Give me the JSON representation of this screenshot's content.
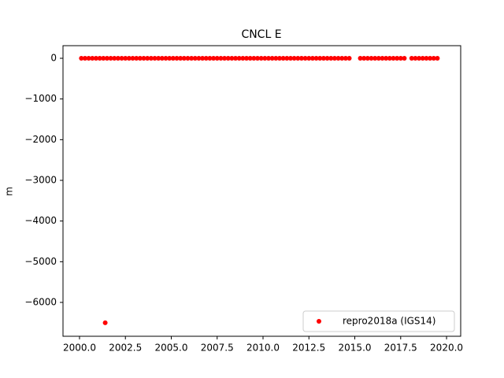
{
  "chart_data": {
    "type": "scatter",
    "title": "CNCL E",
    "y_label": "m",
    "x": [
      2000.1,
      2000.3,
      2000.5,
      2000.7,
      2000.9,
      2001.1,
      2001.3,
      2001.4,
      2001.5,
      2001.7,
      2001.9,
      2002.1,
      2002.3,
      2002.5,
      2002.7,
      2002.9,
      2003.1,
      2003.3,
      2003.5,
      2003.7,
      2003.9,
      2004.1,
      2004.3,
      2004.5,
      2004.7,
      2004.9,
      2005.1,
      2005.3,
      2005.5,
      2005.7,
      2005.9,
      2006.1,
      2006.3,
      2006.5,
      2006.7,
      2006.9,
      2007.1,
      2007.3,
      2007.5,
      2007.7,
      2007.9,
      2008.1,
      2008.3,
      2008.5,
      2008.7,
      2008.9,
      2009.1,
      2009.3,
      2009.5,
      2009.7,
      2009.9,
      2010.1,
      2010.3,
      2010.5,
      2010.7,
      2010.9,
      2011.1,
      2011.3,
      2011.5,
      2011.7,
      2011.9,
      2012.1,
      2012.3,
      2012.5,
      2012.7,
      2012.9,
      2013.1,
      2013.3,
      2013.5,
      2013.7,
      2013.9,
      2014.1,
      2014.3,
      2014.5,
      2014.7,
      2015.3,
      2015.5,
      2015.7,
      2015.9,
      2016.1,
      2016.3,
      2016.5,
      2016.7,
      2016.9,
      2017.1,
      2017.3,
      2017.5,
      2017.7,
      2018.1,
      2018.3,
      2018.5,
      2018.7,
      2018.9,
      2019.1,
      2019.3,
      2019.5
    ],
    "series": [
      {
        "name": "repro2018a (IGS14)",
        "color": "#ff0000",
        "values": [
          0,
          0,
          0,
          0,
          0,
          0,
          0,
          -6500,
          0,
          0,
          0,
          0,
          0,
          0,
          0,
          0,
          0,
          0,
          0,
          0,
          0,
          0,
          0,
          0,
          0,
          0,
          0,
          0,
          0,
          0,
          0,
          0,
          0,
          0,
          0,
          0,
          0,
          0,
          0,
          0,
          0,
          0,
          0,
          0,
          0,
          0,
          0,
          0,
          0,
          0,
          0,
          0,
          0,
          0,
          0,
          0,
          0,
          0,
          0,
          0,
          0,
          0,
          0,
          0,
          0,
          0,
          0,
          0,
          0,
          0,
          0,
          0,
          0,
          0,
          0,
          0,
          0,
          0,
          0,
          0,
          0,
          0,
          0,
          0,
          0,
          0,
          0,
          0,
          0,
          0,
          0,
          0,
          0,
          0,
          0,
          0
        ]
      }
    ],
    "xlim": [
      1999.1,
      2020.77
    ],
    "ylim": [
      -6832,
      310
    ],
    "xticks": [
      {
        "value": 2000,
        "label": "2000.0"
      },
      {
        "value": 2002.5,
        "label": "2002.5"
      },
      {
        "value": 2005,
        "label": "2005.0"
      },
      {
        "value": 2007.5,
        "label": "2007.5"
      },
      {
        "value": 2010,
        "label": "2010.0"
      },
      {
        "value": 2012.5,
        "label": "2012.5"
      },
      {
        "value": 2015,
        "label": "2015.0"
      },
      {
        "value": 2017.5,
        "label": "2017.5"
      },
      {
        "value": 2020,
        "label": "2020.0"
      }
    ],
    "yticks": [
      0,
      {
        "value": -1000,
        "label": "−1000"
      },
      {
        "value": -2000,
        "label": "−2000"
      },
      {
        "value": -3000,
        "label": "−3000"
      },
      {
        "value": -4000,
        "label": "−4000"
      },
      {
        "value": -5000,
        "label": "−5000"
      },
      {
        "value": -6000,
        "label": "−6000"
      }
    ],
    "grid": false,
    "legend": "lower right"
  }
}
